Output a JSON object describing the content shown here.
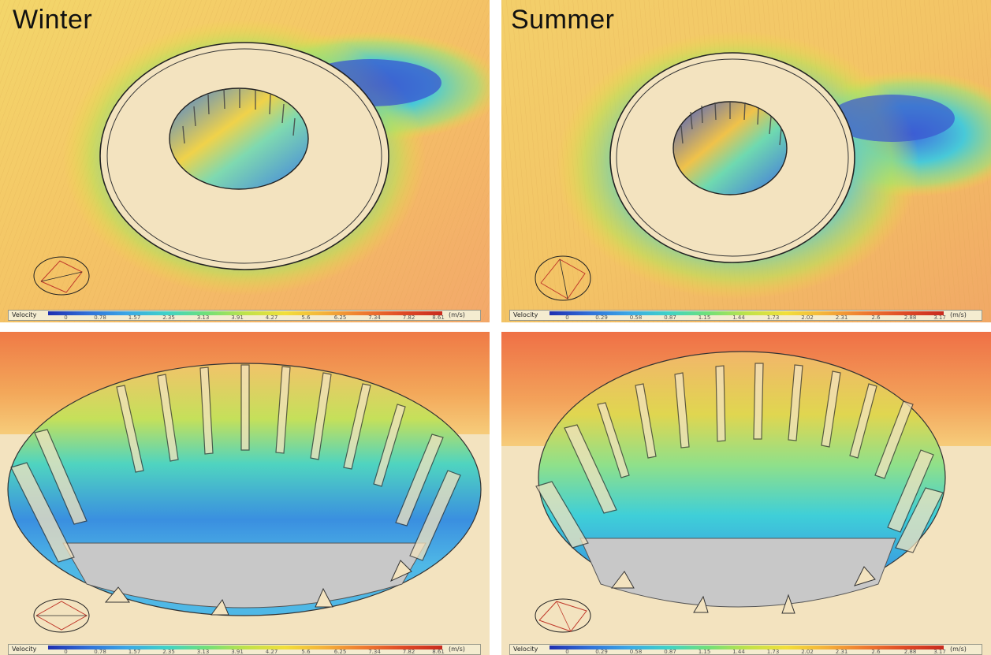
{
  "panels": {
    "top_left": {
      "title": "Winter"
    },
    "top_right": {
      "title": "Summer"
    }
  },
  "legends": {
    "winter": {
      "title": "Velocity",
      "unit": "(m/s)",
      "ticks": [
        "0",
        "0.78",
        "1.57",
        "2.35",
        "3.13",
        "3.91",
        "4.27",
        "5.6",
        "6.25",
        "7.34",
        "7.82",
        "8.61"
      ]
    },
    "summer": {
      "title": "Velocity",
      "unit": "(m/s)",
      "ticks": [
        "0",
        "0.29",
        "0.58",
        "0.87",
        "1.15",
        "1.44",
        "1.73",
        "2.02",
        "2.31",
        "2.6",
        "2.88",
        "3.17"
      ]
    }
  },
  "colors": {
    "scale": [
      "#1f2fb0",
      "#2f6fd8",
      "#3aa7e6",
      "#3fd2c8",
      "#6fe07a",
      "#bfe24a",
      "#f2df3a",
      "#f4b23a",
      "#ee7a30",
      "#df4a26",
      "#c82a1e"
    ],
    "building": "#f3e3bf",
    "court": "#c8c8c8"
  }
}
